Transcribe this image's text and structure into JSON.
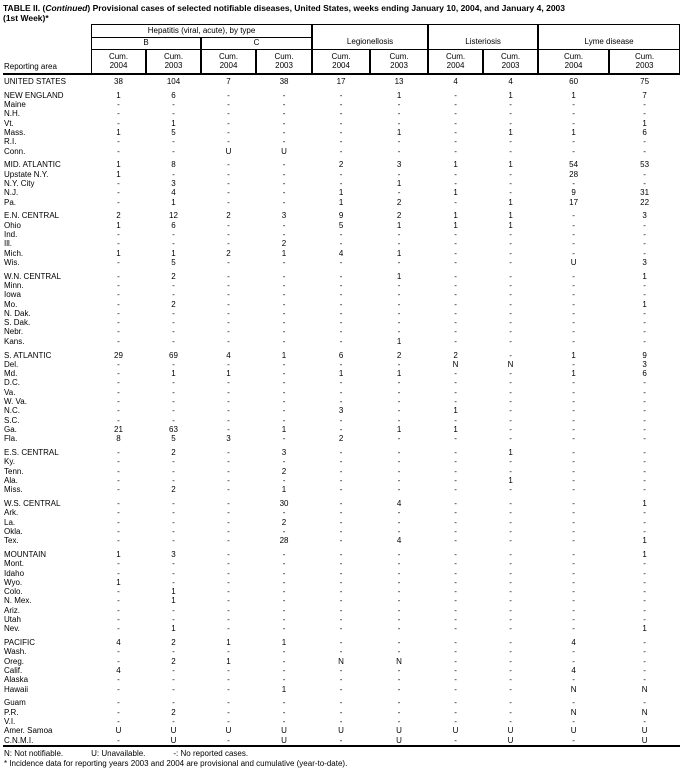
{
  "page": {
    "title_prefix": "TABLE II. (",
    "title_continued": "Continued",
    "title_suffix": ") Provisional cases of selected notifiable diseases, United States, weeks ending January 10, 2004, and January 4, 2003",
    "title_line2": "(1st Week)*"
  },
  "colors": {
    "text": "#000000",
    "background": "#ffffff"
  },
  "header": {
    "reporting_area_label": "Reporting area",
    "hepatitis_group": "Hepatitis (viral, acute), by type",
    "hepatitis_sub": [
      "B",
      "C"
    ],
    "legionellosis_group": "Legionellosis",
    "listeriosis_group": "Listeriosis",
    "lyme_group": "Lyme disease",
    "cum_columns": [
      {
        "label": "Cum.",
        "year": "2004"
      },
      {
        "label": "Cum.",
        "year": "2003"
      },
      {
        "label": "Cum.",
        "year": "2004"
      },
      {
        "label": "Cum.",
        "year": "2003"
      },
      {
        "label": "Cum.",
        "year": "2004"
      },
      {
        "label": "Cum.",
        "year": "2003"
      },
      {
        "label": "Cum.",
        "year": "2004"
      },
      {
        "label": "Cum.",
        "year": "2003"
      },
      {
        "label": "Cum.",
        "year": "2004"
      },
      {
        "label": "Cum.",
        "year": "2003"
      }
    ]
  },
  "rows": [
    {
      "area": "UNITED STATES",
      "values": [
        "38",
        "104",
        "7",
        "38",
        "17",
        "13",
        "4",
        "4",
        "60",
        "75"
      ]
    },
    {
      "area": "NEW ENGLAND",
      "gap_before": true,
      "values": [
        "1",
        "6",
        "-",
        "-",
        "-",
        "1",
        "-",
        "1",
        "1",
        "7"
      ]
    },
    {
      "area": "Maine",
      "values": [
        "-",
        "-",
        "-",
        "-",
        "-",
        "-",
        "-",
        "-",
        "-",
        "-"
      ]
    },
    {
      "area": "N.H.",
      "values": [
        "-",
        "-",
        "-",
        "-",
        "-",
        "-",
        "-",
        "-",
        "-",
        "-"
      ]
    },
    {
      "area": "Vt.",
      "values": [
        "-",
        "1",
        "-",
        "-",
        "-",
        "-",
        "-",
        "-",
        "-",
        "1"
      ]
    },
    {
      "area": "Mass.",
      "values": [
        "1",
        "5",
        "-",
        "-",
        "-",
        "1",
        "-",
        "1",
        "1",
        "6"
      ]
    },
    {
      "area": "R.I.",
      "values": [
        "-",
        "-",
        "-",
        "-",
        "-",
        "-",
        "-",
        "-",
        "-",
        "-"
      ]
    },
    {
      "area": "Conn.",
      "values": [
        "-",
        "-",
        "U",
        "U",
        "-",
        "-",
        "-",
        "-",
        "-",
        "-"
      ]
    },
    {
      "area": "MID. ATLANTIC",
      "gap_before": true,
      "values": [
        "1",
        "8",
        "-",
        "-",
        "2",
        "3",
        "1",
        "1",
        "54",
        "53"
      ]
    },
    {
      "area": "Upstate N.Y.",
      "values": [
        "1",
        "-",
        "-",
        "-",
        "-",
        "-",
        "-",
        "-",
        "28",
        "-"
      ]
    },
    {
      "area": "N.Y. City",
      "values": [
        "-",
        "3",
        "-",
        "-",
        "-",
        "1",
        "-",
        "-",
        "-",
        "-"
      ]
    },
    {
      "area": "N.J.",
      "values": [
        "-",
        "4",
        "-",
        "-",
        "1",
        "-",
        "1",
        "-",
        "9",
        "31"
      ]
    },
    {
      "area": "Pa.",
      "values": [
        "-",
        "1",
        "-",
        "-",
        "1",
        "2",
        "-",
        "1",
        "17",
        "22"
      ]
    },
    {
      "area": "E.N. CENTRAL",
      "gap_before": true,
      "values": [
        "2",
        "12",
        "2",
        "3",
        "9",
        "2",
        "1",
        "1",
        "-",
        "3"
      ]
    },
    {
      "area": "Ohio",
      "values": [
        "1",
        "6",
        "-",
        "-",
        "5",
        "1",
        "1",
        "1",
        "-",
        "-"
      ]
    },
    {
      "area": "Ind.",
      "values": [
        "-",
        "-",
        "-",
        "-",
        "-",
        "-",
        "-",
        "-",
        "-",
        "-"
      ]
    },
    {
      "area": "Ill.",
      "values": [
        "-",
        "-",
        "-",
        "2",
        "-",
        "-",
        "-",
        "-",
        "-",
        "-"
      ]
    },
    {
      "area": "Mich.",
      "values": [
        "1",
        "1",
        "2",
        "1",
        "4",
        "1",
        "-",
        "-",
        "-",
        "-"
      ]
    },
    {
      "area": "Wis.",
      "values": [
        "-",
        "5",
        "-",
        "-",
        "-",
        "-",
        "-",
        "-",
        "U",
        "3"
      ]
    },
    {
      "area": "W.N. CENTRAL",
      "gap_before": true,
      "values": [
        "-",
        "2",
        "-",
        "-",
        "-",
        "1",
        "-",
        "-",
        "-",
        "1"
      ]
    },
    {
      "area": "Minn.",
      "values": [
        "-",
        "-",
        "-",
        "-",
        "-",
        "-",
        "-",
        "-",
        "-",
        "-"
      ]
    },
    {
      "area": "Iowa",
      "values": [
        "-",
        "-",
        "-",
        "-",
        "-",
        "-",
        "-",
        "-",
        "-",
        "-"
      ]
    },
    {
      "area": "Mo.",
      "values": [
        "-",
        "2",
        "-",
        "-",
        "-",
        "-",
        "-",
        "-",
        "-",
        "1"
      ]
    },
    {
      "area": "N. Dak.",
      "values": [
        "-",
        "-",
        "-",
        "-",
        "-",
        "-",
        "-",
        "-",
        "-",
        "-"
      ]
    },
    {
      "area": "S. Dak.",
      "values": [
        "-",
        "-",
        "-",
        "-",
        "-",
        "-",
        "-",
        "-",
        "-",
        "-"
      ]
    },
    {
      "area": "Nebr.",
      "values": [
        "-",
        "-",
        "-",
        "-",
        "-",
        "-",
        "-",
        "-",
        "-",
        "-"
      ]
    },
    {
      "area": "Kans.",
      "values": [
        "-",
        "-",
        "-",
        "-",
        "-",
        "1",
        "-",
        "-",
        "-",
        "-"
      ]
    },
    {
      "area": "S. ATLANTIC",
      "gap_before": true,
      "values": [
        "29",
        "69",
        "4",
        "1",
        "6",
        "2",
        "2",
        "-",
        "1",
        "9"
      ]
    },
    {
      "area": "Del.",
      "values": [
        "-",
        "-",
        "-",
        "-",
        "-",
        "-",
        "N",
        "N",
        "-",
        "3"
      ]
    },
    {
      "area": "Md.",
      "values": [
        "-",
        "1",
        "1",
        "-",
        "1",
        "1",
        "-",
        "-",
        "1",
        "6"
      ]
    },
    {
      "area": "D.C.",
      "values": [
        "-",
        "-",
        "-",
        "-",
        "-",
        "-",
        "-",
        "-",
        "-",
        "-"
      ]
    },
    {
      "area": "Va.",
      "values": [
        "-",
        "-",
        "-",
        "-",
        "-",
        "-",
        "-",
        "-",
        "-",
        "-"
      ]
    },
    {
      "area": "W. Va.",
      "values": [
        "-",
        "-",
        "-",
        "-",
        "-",
        "-",
        "-",
        "-",
        "-",
        "-"
      ]
    },
    {
      "area": "N.C.",
      "values": [
        "-",
        "-",
        "-",
        "-",
        "3",
        "-",
        "1",
        "-",
        "-",
        "-"
      ]
    },
    {
      "area": "S.C.",
      "values": [
        "-",
        "-",
        "-",
        "-",
        "-",
        "-",
        "-",
        "-",
        "-",
        "-"
      ]
    },
    {
      "area": "Ga.",
      "values": [
        "21",
        "63",
        "-",
        "1",
        "-",
        "1",
        "1",
        "-",
        "-",
        "-"
      ]
    },
    {
      "area": "Fla.",
      "values": [
        "8",
        "5",
        "3",
        "-",
        "2",
        "-",
        "-",
        "-",
        "-",
        "-"
      ]
    },
    {
      "area": "E.S. CENTRAL",
      "gap_before": true,
      "values": [
        "-",
        "2",
        "-",
        "3",
        "-",
        "-",
        "-",
        "1",
        "-",
        "-"
      ]
    },
    {
      "area": "Ky.",
      "values": [
        "-",
        "-",
        "-",
        "-",
        "-",
        "-",
        "-",
        "-",
        "-",
        "-"
      ]
    },
    {
      "area": "Tenn.",
      "values": [
        "-",
        "-",
        "-",
        "2",
        "-",
        "-",
        "-",
        "-",
        "-",
        "-"
      ]
    },
    {
      "area": "Ala.",
      "values": [
        "-",
        "-",
        "-",
        "-",
        "-",
        "-",
        "-",
        "1",
        "-",
        "-"
      ]
    },
    {
      "area": "Miss.",
      "values": [
        "-",
        "2",
        "-",
        "1",
        "-",
        "-",
        "-",
        "-",
        "-",
        "-"
      ]
    },
    {
      "area": "W.S. CENTRAL",
      "gap_before": true,
      "values": [
        "-",
        "-",
        "-",
        "30",
        "-",
        "4",
        "-",
        "-",
        "-",
        "1"
      ]
    },
    {
      "area": "Ark.",
      "values": [
        "-",
        "-",
        "-",
        "-",
        "-",
        "-",
        "-",
        "-",
        "-",
        "-"
      ]
    },
    {
      "area": "La.",
      "values": [
        "-",
        "-",
        "-",
        "2",
        "-",
        "-",
        "-",
        "-",
        "-",
        "-"
      ]
    },
    {
      "area": "Okla.",
      "values": [
        "-",
        "-",
        "-",
        "-",
        "-",
        "-",
        "-",
        "-",
        "-",
        "-"
      ]
    },
    {
      "area": "Tex.",
      "values": [
        "-",
        "-",
        "-",
        "28",
        "-",
        "4",
        "-",
        "-",
        "-",
        "1"
      ]
    },
    {
      "area": "MOUNTAIN",
      "gap_before": true,
      "values": [
        "1",
        "3",
        "-",
        "-",
        "-",
        "-",
        "-",
        "-",
        "-",
        "1"
      ]
    },
    {
      "area": "Mont.",
      "values": [
        "-",
        "-",
        "-",
        "-",
        "-",
        "-",
        "-",
        "-",
        "-",
        "-"
      ]
    },
    {
      "area": "Idaho",
      "values": [
        "-",
        "-",
        "-",
        "-",
        "-",
        "-",
        "-",
        "-",
        "-",
        "-"
      ]
    },
    {
      "area": "Wyo.",
      "values": [
        "1",
        "-",
        "-",
        "-",
        "-",
        "-",
        "-",
        "-",
        "-",
        "-"
      ]
    },
    {
      "area": "Colo.",
      "values": [
        "-",
        "1",
        "-",
        "-",
        "-",
        "-",
        "-",
        "-",
        "-",
        "-"
      ]
    },
    {
      "area": "N. Mex.",
      "values": [
        "-",
        "1",
        "-",
        "-",
        "-",
        "-",
        "-",
        "-",
        "-",
        "-"
      ]
    },
    {
      "area": "Ariz.",
      "values": [
        "-",
        "-",
        "-",
        "-",
        "-",
        "-",
        "-",
        "-",
        "-",
        "-"
      ]
    },
    {
      "area": "Utah",
      "values": [
        "-",
        "-",
        "-",
        "-",
        "-",
        "-",
        "-",
        "-",
        "-",
        "-"
      ]
    },
    {
      "area": "Nev.",
      "values": [
        "-",
        "1",
        "-",
        "-",
        "-",
        "-",
        "-",
        "-",
        "-",
        "1"
      ]
    },
    {
      "area": "PACIFIC",
      "gap_before": true,
      "values": [
        "4",
        "2",
        "1",
        "1",
        "-",
        "-",
        "-",
        "-",
        "4",
        "-"
      ]
    },
    {
      "area": "Wash.",
      "values": [
        "-",
        "-",
        "-",
        "-",
        "-",
        "-",
        "-",
        "-",
        "-",
        "-"
      ]
    },
    {
      "area": "Oreg.",
      "values": [
        "-",
        "2",
        "1",
        "-",
        "N",
        "N",
        "-",
        "-",
        "-",
        "-"
      ]
    },
    {
      "area": "Calif.",
      "values": [
        "4",
        "-",
        "-",
        "-",
        "-",
        "-",
        "-",
        "-",
        "4",
        "-"
      ]
    },
    {
      "area": "Alaska",
      "values": [
        "-",
        "-",
        "-",
        "-",
        "-",
        "-",
        "-",
        "-",
        "-",
        "-"
      ]
    },
    {
      "area": "Hawaii",
      "values": [
        "-",
        "-",
        "-",
        "1",
        "-",
        "-",
        "-",
        "-",
        "N",
        "N"
      ]
    },
    {
      "area": "Guam",
      "gap_before": true,
      "values": [
        "-",
        "-",
        "-",
        "-",
        "-",
        "-",
        "-",
        "-",
        "-",
        "-"
      ]
    },
    {
      "area": "P.R.",
      "values": [
        "-",
        "2",
        "-",
        "-",
        "-",
        "-",
        "-",
        "-",
        "N",
        "N"
      ]
    },
    {
      "area": "V.I.",
      "values": [
        "-",
        "-",
        "-",
        "-",
        "-",
        "-",
        "-",
        "-",
        "-",
        "-"
      ]
    },
    {
      "area": "Amer. Samoa",
      "values": [
        "U",
        "U",
        "U",
        "U",
        "U",
        "U",
        "U",
        "U",
        "U",
        "U"
      ]
    },
    {
      "area": "C.N.M.I.",
      "values": [
        "-",
        "U",
        "-",
        "U",
        "-",
        "U",
        "-",
        "U",
        "-",
        "U"
      ]
    }
  ],
  "footnotes": {
    "not_notifiable": "N: Not notifiable.",
    "unavailable": "U: Unavailable.",
    "no_reported": "-: No reported cases.",
    "incidence": "* Incidence data for reporting years 2003 and 2004 are provisional and cumulative (year-to-date)."
  }
}
